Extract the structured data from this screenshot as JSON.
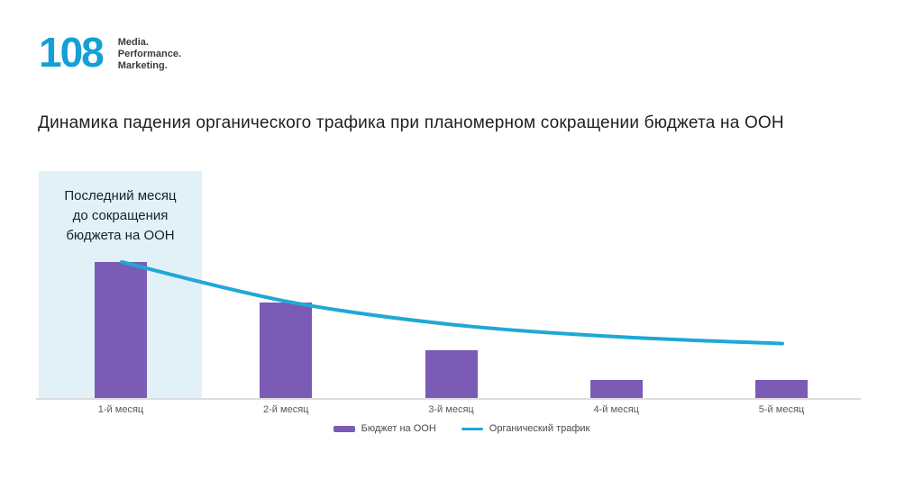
{
  "brand": {
    "logo_text": "108",
    "logo_color": "#149fd6",
    "tagline_lines": [
      "Media.",
      "Performance.",
      "Marketing."
    ]
  },
  "title": "Динамика падения органического трафика при планомерном сокращении бюджета на ООН",
  "annotation": {
    "text_lines": [
      "Последний месяц",
      "до сокращения",
      "бюджета на ООН"
    ],
    "bg_color": "#e2f1f8"
  },
  "legend": [
    {
      "label": "Бюджет на ООН",
      "type": "bar",
      "color": "#7a5bb5"
    },
    {
      "label": "Органический трафик",
      "type": "line",
      "color": "#1fa8d6"
    }
  ],
  "chart_data": {
    "type": "bar+line",
    "title": "Динамика падения органического трафика при планомерном сокращении бюджета на ООН",
    "categories": [
      "1-й месяц",
      "2-й месяц",
      "3-й месяц",
      "4-й месяц",
      "5-й месяц"
    ],
    "series": [
      {
        "name": "Бюджет на ООН",
        "type": "bar",
        "color": "#7a5bb5",
        "values": [
          100,
          70,
          35,
          13,
          13
        ]
      },
      {
        "name": "Органический трафик",
        "type": "line",
        "color": "#1fa8d6",
        "values": [
          100,
          71,
          54,
          45,
          40
        ]
      }
    ],
    "xlabel": "",
    "ylabel": "",
    "ylim": [
      0,
      110
    ],
    "y_axis_visible": false,
    "grid": false,
    "legend_position": "bottom",
    "highlight": {
      "category_index": 0,
      "label": "Последний месяц до сокращения бюджета на ООН"
    }
  }
}
